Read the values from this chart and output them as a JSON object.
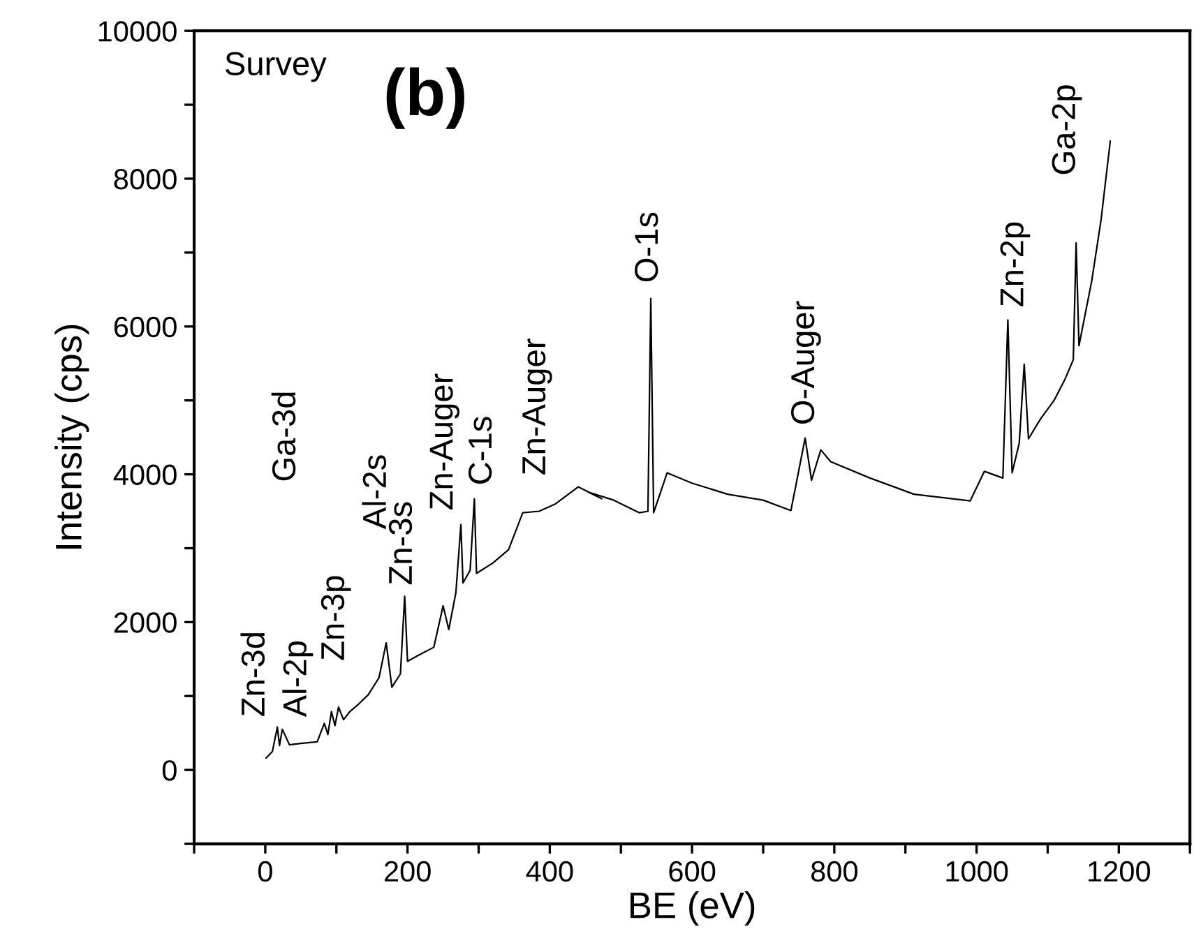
{
  "chart_data": {
    "type": "line",
    "xlabel": "BE (eV)",
    "ylabel": "Intensity (cps)",
    "x": [
      1,
      10,
      17,
      20,
      24,
      34,
      50,
      73,
      83,
      88,
      93,
      98,
      103,
      110,
      119,
      130,
      145,
      160,
      170,
      178,
      190,
      196,
      200,
      215,
      237,
      250,
      258,
      268,
      275,
      278,
      288,
      294,
      297,
      320,
      342,
      362,
      385,
      408,
      440,
      473,
      454,
      490,
      526,
      538,
      542,
      546,
      565,
      600,
      650,
      700,
      739,
      759,
      768,
      781,
      795,
      850,
      912,
      991,
      1011,
      1037,
      1044,
      1050,
      1060,
      1067,
      1073,
      1090,
      1109,
      1125,
      1136,
      1140,
      1144,
      1162,
      1175,
      1188
    ],
    "series": [
      {
        "color": "#000000",
        "values": [
          160,
          250,
          580,
          330,
          550,
          340,
          360,
          380,
          630,
          480,
          790,
          600,
          850,
          680,
          790,
          880,
          1020,
          1250,
          1720,
          1120,
          1300,
          2350,
          1470,
          1550,
          1660,
          2220,
          1900,
          2400,
          3320,
          2530,
          2700,
          3670,
          2660,
          2800,
          2980,
          3480,
          3500,
          3600,
          3830,
          3670,
          3760,
          3650,
          3480,
          3500,
          6380,
          3480,
          4020,
          3880,
          3730,
          3650,
          3510,
          4490,
          3920,
          4330,
          4170,
          3950,
          3730,
          3640,
          4040,
          3950,
          6090,
          4020,
          4420,
          5490,
          4480,
          4750,
          5000,
          5300,
          5550,
          7130,
          5740,
          6620,
          7440,
          8510
        ]
      }
    ],
    "xlim": [
      -100,
      1300
    ],
    "ylim": [
      -1000,
      10000
    ],
    "xticks": [
      {
        "value": -100,
        "label": null
      },
      0,
      {
        "value": 100,
        "label": null
      },
      200,
      {
        "value": 300,
        "label": null
      },
      400,
      {
        "value": 500,
        "label": null
      },
      600,
      {
        "value": 700,
        "label": null
      },
      800,
      {
        "value": 900,
        "label": null
      },
      1000,
      {
        "value": 1100,
        "label": null
      },
      1200,
      {
        "value": 1300,
        "label": null
      }
    ],
    "yticks": [
      {
        "value": -1000,
        "label": null
      },
      0,
      {
        "value": 1000,
        "label": null
      },
      2000,
      {
        "value": 3000,
        "label": null
      },
      4000,
      {
        "value": 5000,
        "label": null
      },
      6000,
      {
        "value": 7000,
        "label": null
      },
      8000,
      {
        "value": 9000,
        "label": null
      },
      10000
    ],
    "grid": false,
    "legend": false,
    "annotations": [
      "Survey",
      "(b)",
      "Zn-3d",
      "Al-2p",
      "Zn-3p",
      "Ga-3d",
      "Al-2s",
      "Zn-3s",
      "Zn-Auger",
      "C-1s",
      "Zn-Auger",
      "O-1s",
      "O-Auger",
      "Zn-2p",
      "Ga-2p"
    ]
  }
}
